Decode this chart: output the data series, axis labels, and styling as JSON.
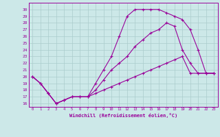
{
  "xlabel": "Windchill (Refroidissement éolien,°C)",
  "bg_color": "#cce8e8",
  "line_color": "#990099",
  "grid_color": "#aacccc",
  "xlim": [
    -0.5,
    23.5
  ],
  "ylim": [
    15.5,
    31.0
  ],
  "xticks": [
    0,
    1,
    2,
    3,
    4,
    5,
    6,
    7,
    8,
    9,
    10,
    11,
    12,
    13,
    14,
    15,
    16,
    17,
    18,
    19,
    20,
    21,
    22,
    23
  ],
  "yticks": [
    16,
    17,
    18,
    19,
    20,
    21,
    22,
    23,
    24,
    25,
    26,
    27,
    28,
    29,
    30
  ],
  "curve1_x": [
    0,
    1,
    2,
    3,
    4,
    5,
    6,
    7,
    8,
    9,
    10,
    11,
    12,
    13,
    14,
    15,
    16,
    17,
    18,
    19,
    20,
    21,
    22,
    23
  ],
  "curve1_y": [
    20,
    19,
    17.5,
    16,
    16.5,
    17,
    17,
    17,
    19,
    21,
    23,
    26,
    29,
    30,
    30,
    30,
    30,
    29.5,
    29,
    28.5,
    27,
    24,
    20.5,
    20.5
  ],
  "curve2_x": [
    0,
    1,
    2,
    3,
    4,
    5,
    6,
    7,
    8,
    9,
    10,
    11,
    12,
    13,
    14,
    15,
    16,
    17,
    18,
    19,
    20,
    21,
    22,
    23
  ],
  "curve2_y": [
    20,
    19,
    17.5,
    16,
    16.5,
    17,
    17,
    17,
    18,
    19.5,
    21,
    22,
    23,
    24.5,
    25.5,
    26.5,
    27,
    28,
    27.5,
    24,
    22,
    20.5,
    20.5,
    20.5
  ],
  "curve3_x": [
    0,
    1,
    2,
    3,
    4,
    5,
    6,
    7,
    8,
    9,
    10,
    11,
    12,
    13,
    14,
    15,
    16,
    17,
    18,
    19,
    20,
    21,
    22,
    23
  ],
  "curve3_y": [
    20,
    19,
    17.5,
    16,
    16.5,
    17,
    17,
    17,
    17.5,
    18,
    18.5,
    19,
    19.5,
    20,
    20.5,
    21,
    21.5,
    22,
    22.5,
    23,
    20.5,
    20.5,
    20.5,
    20.5
  ]
}
